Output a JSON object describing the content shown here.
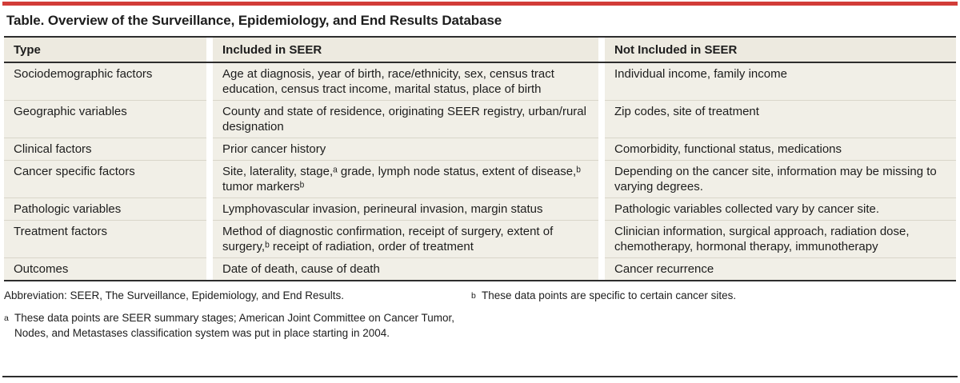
{
  "accent_color": "#d23c38",
  "title": "Table. Overview of the Surveillance, Epidemiology, and End Results Database",
  "table": {
    "columns": [
      "Type",
      "Included in SEER",
      "Not Included in SEER"
    ],
    "rows": [
      {
        "type": "Sociodemographic factors",
        "included": "Age at diagnosis, year of birth, race/ethnicity, sex, census tract education, census tract income, marital status, place of birth",
        "not_included": "Individual income, family income"
      },
      {
        "type": "Geographic variables",
        "included": "County and state of residence, originating SEER registry, urban/rural designation",
        "not_included": "Zip codes, site of treatment"
      },
      {
        "type": "Clinical factors",
        "included": "Prior cancer history",
        "not_included": "Comorbidity, functional status, medications"
      },
      {
        "type": "Cancer specific factors",
        "included": "Site, laterality, stage,ᵃ grade, lymph node status, extent of disease,ᵇ tumor markersᵇ",
        "not_included": "Depending on the cancer site, information may be missing to varying degrees."
      },
      {
        "type": "Pathologic variables",
        "included": "Lymphovascular invasion, perineural invasion, margin status",
        "not_included": "Pathologic variables collected vary by cancer site."
      },
      {
        "type": "Treatment factors",
        "included": "Method of diagnostic confirmation, receipt of surgery, extent of surgery,ᵇ receipt of radiation, order of treatment",
        "not_included": "Clinician information, surgical approach, radiation dose, chemotherapy, hormonal therapy, immunotherapy"
      },
      {
        "type": "Outcomes",
        "included": "Date of death, cause of death",
        "not_included": "Cancer recurrence"
      }
    ]
  },
  "footnotes": {
    "abbreviation": "Abbreviation: SEER, The Surveillance, Epidemiology, and End Results.",
    "a_marker": "a",
    "a_text": "These data points are SEER summary stages; American Joint Committee on Cancer Tumor, Nodes, and Metastases classification system was put in place starting in 2004.",
    "b_marker": "b",
    "b_text": "These data points are specific to certain cancer sites."
  }
}
